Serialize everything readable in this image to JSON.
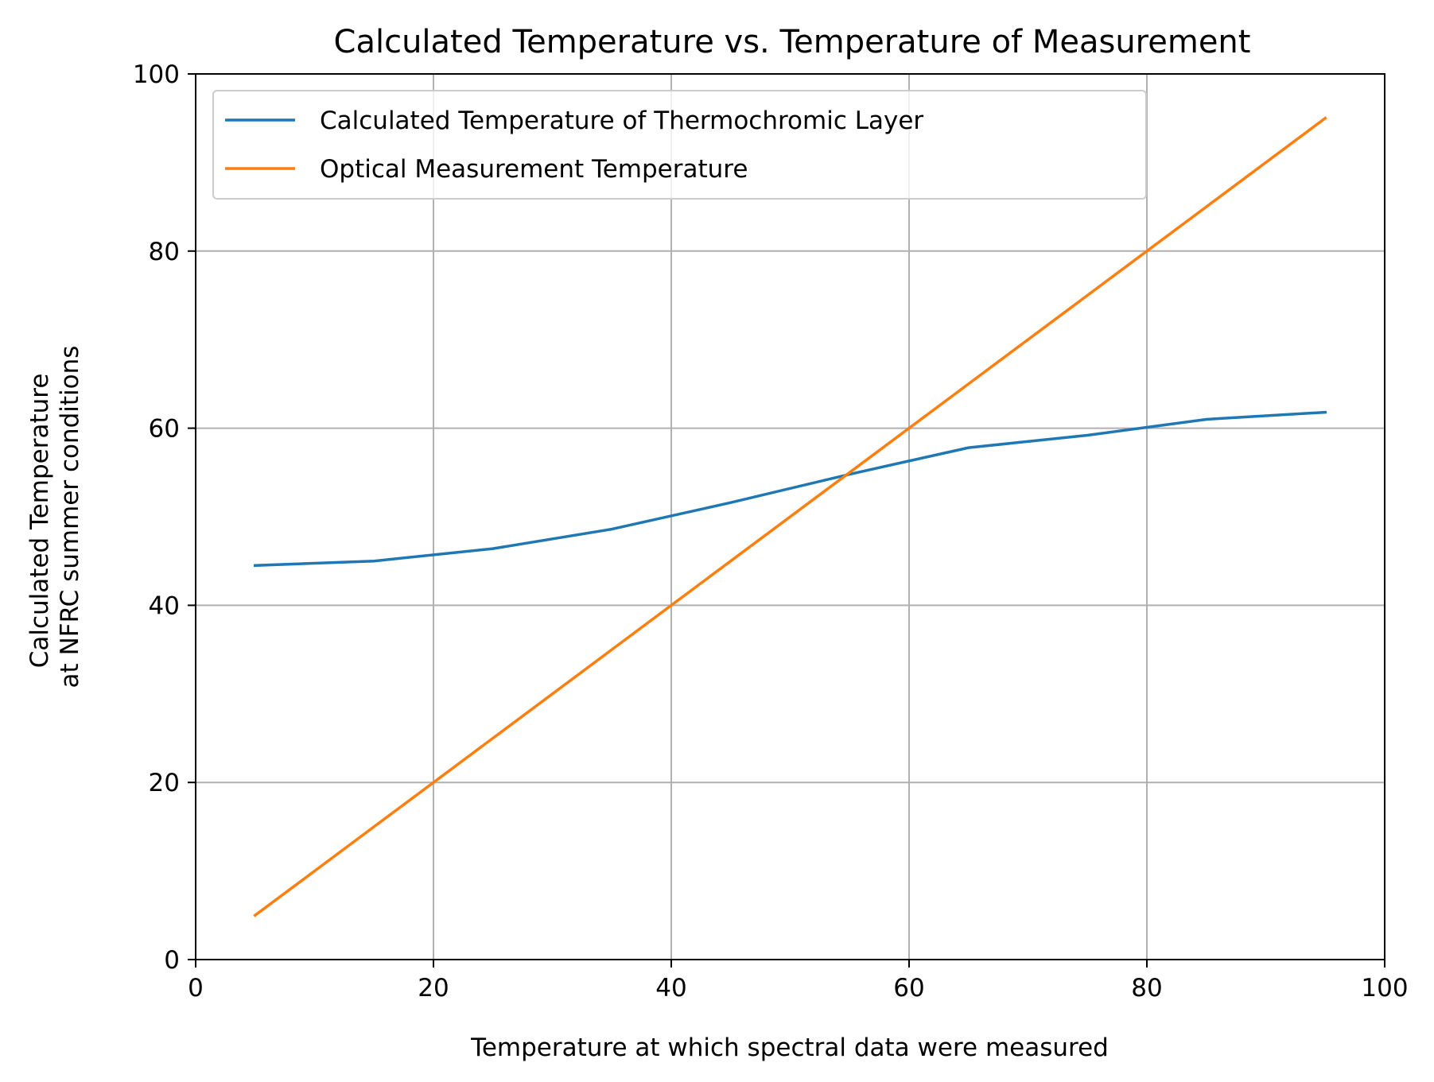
{
  "chart_data": {
    "type": "line",
    "title": "Calculated Temperature vs. Temperature of Measurement",
    "xlabel": "Temperature at which spectral data were measured",
    "ylabel_lines": [
      "Calculated Temperature",
      "at NFRC summer conditions"
    ],
    "xlim": [
      0,
      100
    ],
    "ylim": [
      0,
      100
    ],
    "xticks": [
      0,
      20,
      40,
      60,
      80,
      100
    ],
    "yticks": [
      0,
      20,
      40,
      60,
      80,
      100
    ],
    "xtick_labels": [
      "0",
      "20",
      "40",
      "60",
      "80",
      "100"
    ],
    "ytick_labels": [
      "0",
      "20",
      "40",
      "60",
      "80",
      "100"
    ],
    "grid": true,
    "legend_position": "top-left",
    "x": [
      5,
      15,
      25,
      35,
      45,
      55,
      65,
      75,
      85,
      95
    ],
    "series": [
      {
        "name": "Calculated Temperature of Thermochromic Layer",
        "color": "#1f77b4",
        "values": [
          44.5,
          45.0,
          46.4,
          48.6,
          51.6,
          54.8,
          57.8,
          59.2,
          61.0,
          61.8
        ]
      },
      {
        "name": "Optical Measurement Temperature",
        "color": "#ff7f0e",
        "values": [
          5,
          15,
          25,
          35,
          45,
          55,
          65,
          75,
          85,
          95
        ]
      }
    ]
  }
}
